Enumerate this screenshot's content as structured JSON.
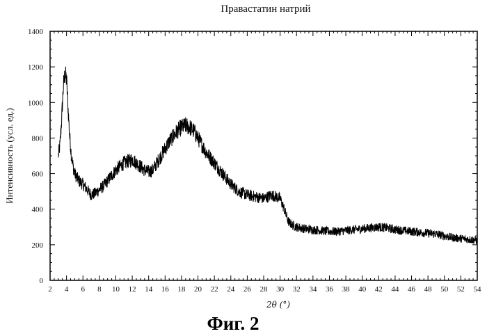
{
  "figure_label": "Фиг. 2",
  "chart_data": {
    "type": "line",
    "title": "Правастатин натрий",
    "xlabel": "2θ (°)",
    "ylabel": "Интенсивность (усл. ед.)",
    "xlim": [
      2,
      54
    ],
    "ylim": [
      0,
      1400
    ],
    "xticks": [
      "2",
      "4",
      "6",
      "8",
      "10",
      "12",
      "14",
      "16",
      "18",
      "20",
      "22",
      "24",
      "26",
      "28",
      "30",
      "32",
      "34",
      "36",
      "38",
      "40",
      "42",
      "44",
      "46",
      "48",
      "50",
      "52",
      "54"
    ],
    "yticks": [
      "0",
      "200",
      "400",
      "600",
      "800",
      "1000",
      "1200",
      "1400"
    ],
    "grid": false,
    "series": [
      {
        "x": [
          3.0,
          3.2,
          3.4,
          3.6,
          3.8,
          4.0,
          4.2,
          4.4,
          4.6,
          4.8,
          5.0,
          5.5,
          6.0,
          6.5,
          7.0,
          7.5,
          8.0,
          8.5,
          9.0,
          9.5,
          10.0,
          10.5,
          11.0,
          11.5,
          12.0,
          12.5,
          13.0,
          13.5,
          14.0,
          14.5,
          15.0,
          15.5,
          16.0,
          16.5,
          17.0,
          17.5,
          18.0,
          18.5,
          19.0,
          19.5,
          20.0,
          20.5,
          21.0,
          21.5,
          22.0,
          22.5,
          23.0,
          23.5,
          24.0,
          24.5,
          25.0,
          25.5,
          26.0,
          26.5,
          27.0,
          27.5,
          28.0,
          28.5,
          29.0,
          29.5,
          30.0,
          30.5,
          31.0,
          31.5,
          32.0,
          33.0,
          34.0,
          35.0,
          36.0,
          37.0,
          38.0,
          39.0,
          40.0,
          41.0,
          42.0,
          43.0,
          44.0,
          45.0,
          46.0,
          47.0,
          48.0,
          49.0,
          50.0,
          51.0,
          52.0,
          53.0,
          54.0
        ],
        "y": [
          700,
          760,
          900,
          1080,
          1160,
          1130,
          960,
          800,
          700,
          640,
          600,
          560,
          540,
          510,
          480,
          490,
          510,
          530,
          560,
          590,
          620,
          640,
          660,
          670,
          680,
          660,
          640,
          620,
          610,
          620,
          660,
          700,
          740,
          780,
          810,
          840,
          860,
          870,
          860,
          840,
          800,
          760,
          720,
          690,
          660,
          630,
          600,
          570,
          540,
          520,
          500,
          490,
          480,
          475,
          470,
          465,
          460,
          470,
          480,
          470,
          460,
          400,
          330,
          310,
          300,
          290,
          285,
          280,
          275,
          275,
          280,
          285,
          290,
          295,
          300,
          295,
          285,
          280,
          275,
          270,
          265,
          260,
          250,
          240,
          235,
          230,
          225
        ]
      }
    ]
  }
}
